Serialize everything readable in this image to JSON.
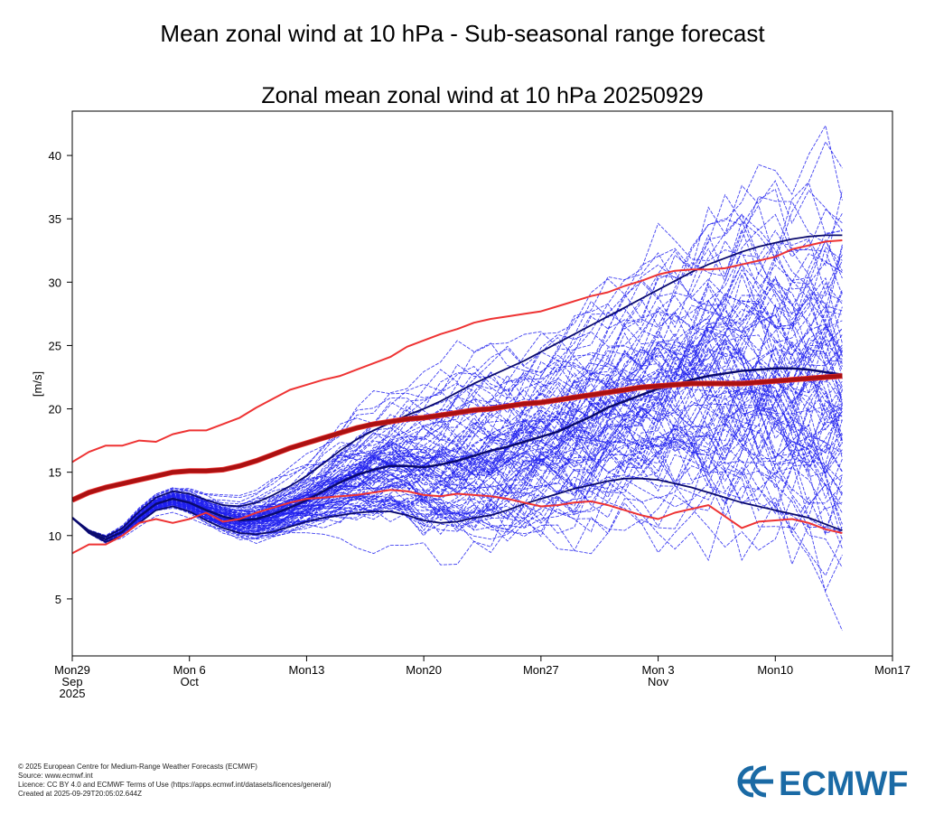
{
  "page": {
    "title": "Mean zonal wind at 10 hPa - Sub-seasonal range forecast"
  },
  "footer": {
    "copyright": "© 2025 European Centre for Medium-Range Weather Forecasts (ECMWF)",
    "source": "Source: www.ecmwf.int",
    "licence": "Licence: CC BY 4.0 and ECMWF Terms of Use (https://apps.ecmwf.int/datasets/licences/general/)",
    "created": "Created at 2025-09-29T20:05:02.644Z"
  },
  "logo": {
    "text": "ECMWF",
    "color": "#1a6aa5"
  },
  "colors": {
    "ensemble": "#2020ee",
    "ensemble_dark": "#0a0a6e",
    "climate": "#ee3333",
    "climate_median": "#aa1111"
  },
  "chart_data": {
    "type": "line",
    "title": "Zonal mean zonal wind at 10 hPa 20250929",
    "ylabel": "[m/s]",
    "xlabel": "",
    "xlim": [
      0,
      49
    ],
    "ylim": [
      0.5,
      43.5
    ],
    "yticks": [
      5,
      10,
      15,
      20,
      25,
      30,
      35,
      40
    ],
    "xticks": [
      {
        "day": 0,
        "lines": [
          "Mon29",
          "Sep",
          "2025"
        ]
      },
      {
        "day": 7,
        "lines": [
          "Mon 6",
          "Oct"
        ]
      },
      {
        "day": 14,
        "lines": [
          "Mon13"
        ]
      },
      {
        "day": 21,
        "lines": [
          "Mon20"
        ]
      },
      {
        "day": 28,
        "lines": [
          "Mon27"
        ]
      },
      {
        "day": 35,
        "lines": [
          "Mon 3",
          "Nov"
        ]
      },
      {
        "day": 42,
        "lines": [
          "Mon10"
        ]
      },
      {
        "day": 49,
        "lines": [
          "Mon17"
        ]
      }
    ],
    "days": [
      0,
      1,
      2,
      3,
      4,
      5,
      6,
      7,
      8,
      9,
      10,
      11,
      12,
      13,
      14,
      15,
      16,
      17,
      18,
      19,
      20,
      21,
      22,
      23,
      24,
      25,
      26,
      27,
      28,
      29,
      30,
      31,
      32,
      33,
      34,
      35,
      36,
      37,
      38,
      39,
      40,
      41,
      42,
      43,
      44,
      45,
      46
    ],
    "ensemble_member_count": 101,
    "series": [
      {
        "name": "climate upper bound",
        "role": "climate",
        "values": [
          15.8,
          16.6,
          17.1,
          17.1,
          17.5,
          17.4,
          18.0,
          18.3,
          18.3,
          18.8,
          19.3,
          20.1,
          20.8,
          21.5,
          21.9,
          22.3,
          22.6,
          23.1,
          23.6,
          24.1,
          24.9,
          25.4,
          25.9,
          26.3,
          26.8,
          27.1,
          27.3,
          27.5,
          27.7,
          28.1,
          28.5,
          28.9,
          29.2,
          29.7,
          30.1,
          30.6,
          30.9,
          31.0,
          31.0,
          31.1,
          31.4,
          31.7,
          32.0,
          32.6,
          32.9,
          33.2,
          33.3
        ]
      },
      {
        "name": "climate median",
        "role": "climate_median",
        "values": [
          12.8,
          13.4,
          13.8,
          14.1,
          14.4,
          14.7,
          15.0,
          15.1,
          15.1,
          15.2,
          15.5,
          15.9,
          16.4,
          16.9,
          17.3,
          17.7,
          18.1,
          18.5,
          18.8,
          19.0,
          19.2,
          19.3,
          19.5,
          19.7,
          19.9,
          20.0,
          20.2,
          20.4,
          20.5,
          20.7,
          20.9,
          21.1,
          21.3,
          21.5,
          21.7,
          21.8,
          21.9,
          22.0,
          22.0,
          22.0,
          22.0,
          22.1,
          22.2,
          22.3,
          22.4,
          22.5,
          22.6
        ]
      },
      {
        "name": "climate lower bound",
        "role": "climate",
        "values": [
          8.6,
          9.3,
          9.3,
          10.0,
          11.0,
          11.3,
          11.0,
          11.3,
          11.8,
          11.1,
          11.3,
          11.8,
          12.2,
          12.6,
          12.9,
          13.0,
          13.1,
          13.2,
          13.4,
          13.6,
          13.5,
          13.2,
          13.1,
          13.3,
          13.2,
          13.1,
          12.9,
          12.6,
          12.3,
          12.4,
          12.6,
          12.7,
          12.4,
          12.0,
          11.6,
          11.3,
          11.8,
          12.1,
          12.4,
          11.5,
          10.6,
          11.1,
          11.2,
          11.3,
          11.0,
          10.5,
          10.2
        ]
      },
      {
        "name": "ensemble mean",
        "role": "ensemble_mean",
        "values": [
          11.4,
          10.3,
          9.7,
          10.3,
          11.5,
          12.5,
          12.9,
          12.6,
          12.0,
          11.5,
          11.2,
          11.3,
          11.7,
          12.2,
          12.8,
          13.5,
          14.2,
          14.8,
          15.2,
          15.5,
          15.5,
          15.4,
          15.6,
          15.9,
          16.3,
          16.7,
          17.0,
          17.4,
          17.8,
          18.2,
          18.8,
          19.4,
          20.1,
          20.6,
          21.1,
          21.6,
          21.9,
          22.3,
          22.6,
          22.8,
          23.0,
          23.1,
          23.2,
          23.2,
          23.1,
          22.9,
          22.7
        ]
      },
      {
        "name": "ensemble 10th percentile",
        "role": "ensemble_quantile",
        "values": [
          11.4,
          10.2,
          9.5,
          10.0,
          11.0,
          12.0,
          12.3,
          11.9,
          11.2,
          10.6,
          10.2,
          10.1,
          10.3,
          10.7,
          11.1,
          11.4,
          11.6,
          11.8,
          11.9,
          11.9,
          11.6,
          11.2,
          11.0,
          11.1,
          11.4,
          11.6,
          12.0,
          12.5,
          12.9,
          13.3,
          13.7,
          14.0,
          14.3,
          14.5,
          14.5,
          14.4,
          14.1,
          13.8,
          13.4,
          13.0,
          12.6,
          12.3,
          12.0,
          11.7,
          11.4,
          10.9,
          10.4
        ]
      },
      {
        "name": "ensemble 90th percentile",
        "role": "ensemble_quantile",
        "values": [
          11.4,
          10.4,
          9.9,
          10.6,
          11.9,
          13.0,
          13.5,
          13.3,
          12.8,
          12.4,
          12.3,
          12.6,
          13.2,
          13.9,
          14.7,
          15.7,
          16.7,
          17.6,
          18.3,
          18.9,
          19.5,
          20.0,
          20.6,
          21.3,
          22.0,
          22.6,
          23.2,
          23.8,
          24.5,
          25.2,
          25.9,
          26.6,
          27.3,
          28.0,
          28.7,
          29.4,
          30.1,
          30.8,
          31.4,
          31.9,
          32.4,
          32.8,
          33.1,
          33.4,
          33.6,
          33.7,
          33.7
        ]
      }
    ]
  }
}
